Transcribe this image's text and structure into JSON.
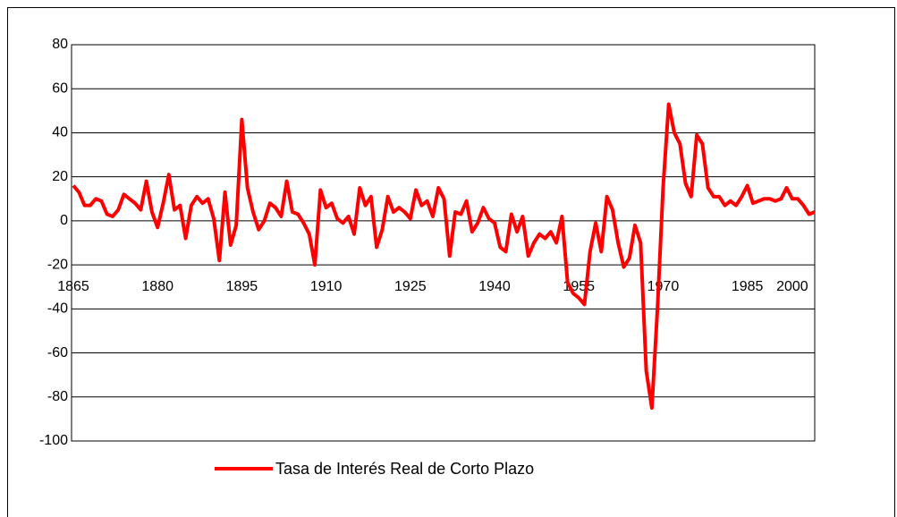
{
  "chart_data": {
    "type": "line",
    "categories": [
      "1865",
      null,
      null,
      null,
      null,
      null,
      null,
      null,
      null,
      null,
      null,
      null,
      null,
      null,
      null,
      "1880",
      null,
      null,
      null,
      null,
      null,
      null,
      null,
      null,
      null,
      null,
      null,
      null,
      null,
      null,
      "1895",
      null,
      null,
      null,
      null,
      null,
      null,
      null,
      null,
      null,
      null,
      null,
      null,
      null,
      null,
      "1910",
      null,
      null,
      null,
      null,
      null,
      null,
      null,
      null,
      null,
      null,
      null,
      null,
      null,
      null,
      "1925",
      null,
      null,
      null,
      null,
      null,
      null,
      null,
      null,
      null,
      null,
      null,
      null,
      null,
      null,
      "1940",
      null,
      null,
      null,
      null,
      null,
      null,
      null,
      null,
      null,
      null,
      null,
      null,
      null,
      null,
      "1955",
      null,
      null,
      null,
      null,
      null,
      null,
      null,
      null,
      null,
      null,
      null,
      null,
      null,
      null,
      "1970",
      null,
      null,
      null,
      null,
      null,
      null,
      null,
      null,
      null,
      null,
      null,
      null,
      null,
      null,
      "1985",
      null,
      null,
      null,
      null,
      null,
      null,
      null,
      "2000",
      null,
      null,
      null,
      null
    ],
    "series": [
      {
        "name": "Tasa de Interés Real de Corto Plazo",
        "color": "#ff0000",
        "values": [
          16,
          13,
          7,
          7,
          10,
          9,
          3,
          2,
          5,
          12,
          10,
          8,
          5,
          18,
          4,
          -3,
          8,
          21,
          5,
          7,
          -8,
          7,
          11,
          8,
          10,
          1,
          -18,
          13,
          -11,
          -2,
          46,
          15,
          4,
          -4,
          0,
          8,
          6,
          2,
          18,
          4,
          3,
          -1,
          -6,
          -20,
          14,
          6,
          8,
          1,
          -1,
          2,
          -6,
          15,
          7,
          11,
          -12,
          -4,
          11,
          4,
          6,
          4,
          1,
          14,
          7,
          9,
          2,
          15,
          10,
          -16,
          4,
          3,
          9,
          -5,
          -1,
          6,
          1,
          -1,
          -12,
          -14,
          3,
          -5,
          2,
          -16,
          -10,
          -6,
          -8,
          -5,
          -10,
          2,
          -28,
          -33,
          -35,
          -38,
          -14,
          -1,
          -14,
          11,
          5,
          -10,
          -21,
          -17,
          -2,
          -10,
          -68,
          -85,
          -40,
          15,
          53,
          40,
          35,
          17,
          11,
          39,
          35,
          15,
          11,
          11,
          7,
          9,
          7,
          11,
          16,
          8,
          9,
          10,
          10,
          9,
          10,
          15,
          10,
          10,
          7,
          3,
          4
        ]
      }
    ],
    "ylim": [
      -100,
      80
    ],
    "yticks": [
      -100,
      -80,
      -60,
      -40,
      -20,
      0,
      20,
      40,
      60,
      80
    ],
    "grid": true,
    "legend": "bottom"
  }
}
